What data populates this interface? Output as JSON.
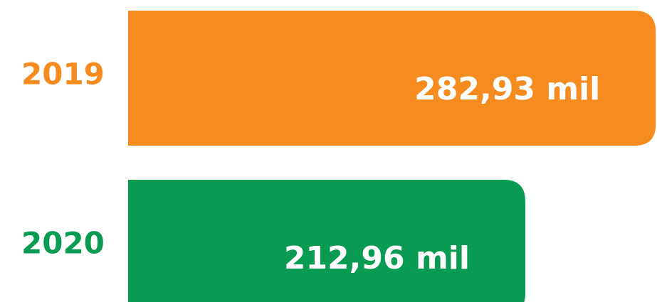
{
  "chart_data": {
    "type": "bar",
    "orientation": "horizontal",
    "categories": [
      "2019",
      "2020"
    ],
    "values": [
      282.93,
      212.96
    ],
    "value_labels": [
      "282,93 mil",
      "212,96 mil"
    ],
    "colors": [
      "#f68b1f",
      "#0a9b53"
    ]
  }
}
